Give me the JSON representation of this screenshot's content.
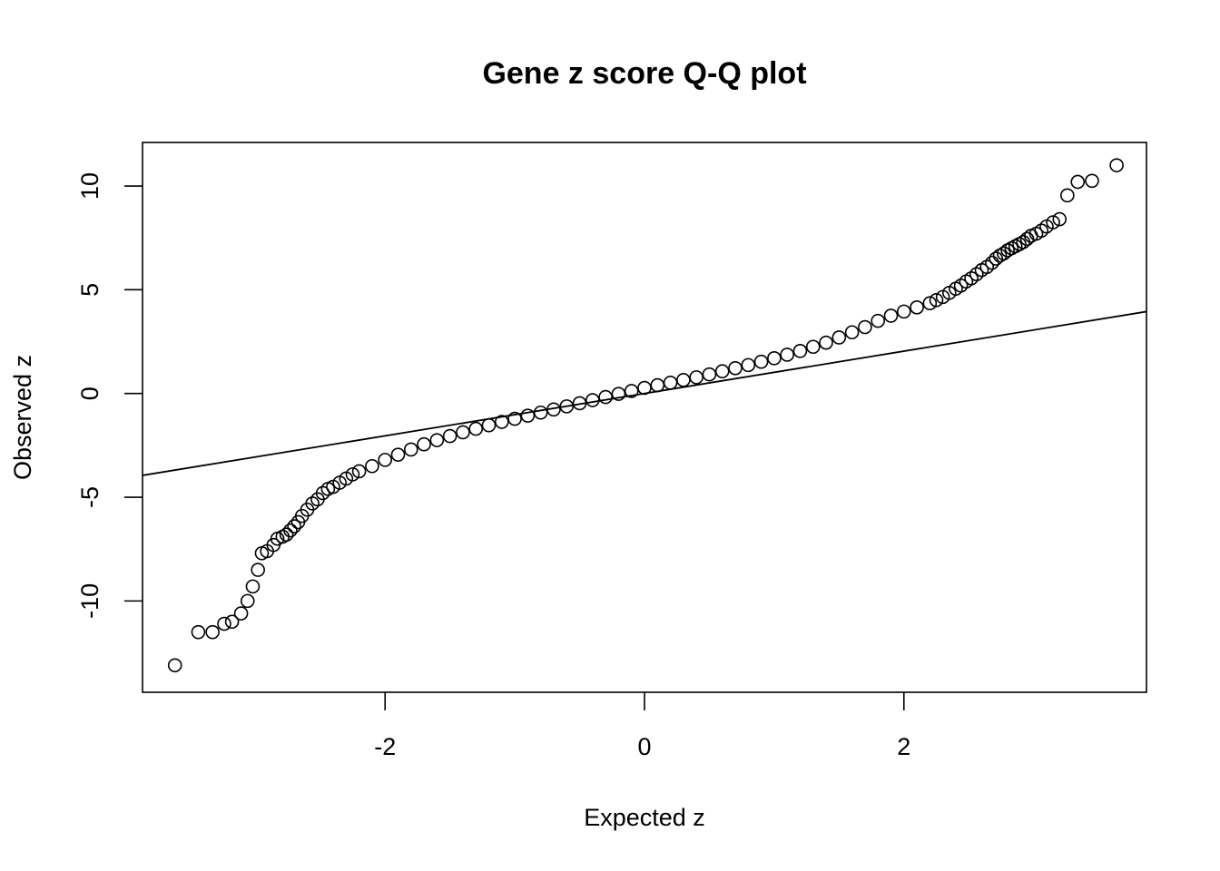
{
  "chart_data": {
    "type": "scatter",
    "title": "Gene z score Q-Q plot",
    "xlabel": "Expected z",
    "ylabel": "Observed z",
    "xlim": [
      -3.87,
      3.87
    ],
    "ylim": [
      -14.4,
      12.1
    ],
    "x_ticks": [
      -2,
      0,
      2
    ],
    "x_tick_labels": [
      "-2",
      "0",
      "2"
    ],
    "y_ticks": [
      -10,
      -5,
      0,
      5,
      10
    ],
    "y_tick_labels": [
      "-10",
      "-5",
      "0",
      "5",
      "10"
    ],
    "grid": false,
    "legend": "none",
    "reference_line": {
      "intercept": 0,
      "slope": 1.02
    },
    "points": {
      "x": [
        -3.62,
        -3.44,
        -3.33,
        -3.24,
        -3.18,
        -3.11,
        -3.06,
        -3.02,
        -2.98,
        -2.95,
        -2.91,
        -2.86,
        -2.83,
        -2.79,
        -2.76,
        -2.73,
        -2.7,
        -2.67,
        -2.64,
        -2.6,
        -2.56,
        -2.52,
        -2.48,
        -2.44,
        -2.4,
        -2.35,
        -2.3,
        -2.25,
        -2.2,
        -2.1,
        -2.0,
        -1.9,
        -1.8,
        -1.7,
        -1.6,
        -1.5,
        -1.4,
        -1.3,
        -1.2,
        -1.1,
        -1.0,
        -0.9,
        -0.8,
        -0.7,
        -0.6,
        -0.5,
        -0.4,
        -0.3,
        -0.2,
        -0.1,
        0.0,
        0.1,
        0.2,
        0.3,
        0.4,
        0.5,
        0.6,
        0.7,
        0.8,
        0.9,
        1.0,
        1.1,
        1.2,
        1.3,
        1.4,
        1.5,
        1.6,
        1.7,
        1.8,
        1.9,
        2.0,
        2.1,
        2.2,
        2.25,
        2.3,
        2.35,
        2.4,
        2.44,
        2.48,
        2.52,
        2.56,
        2.6,
        2.64,
        2.68,
        2.71,
        2.74,
        2.77,
        2.8,
        2.83,
        2.86,
        2.89,
        2.92,
        2.95,
        2.98,
        3.02,
        3.06,
        3.1,
        3.15,
        3.2,
        3.26,
        3.34,
        3.45,
        3.64
      ],
      "y": [
        -13.1,
        -11.5,
        -11.5,
        -11.1,
        -11.0,
        -10.6,
        -10.0,
        -9.3,
        -8.5,
        -7.7,
        -7.6,
        -7.3,
        -7.0,
        -6.9,
        -6.8,
        -6.6,
        -6.4,
        -6.2,
        -5.9,
        -5.6,
        -5.3,
        -5.1,
        -4.8,
        -4.6,
        -4.5,
        -4.3,
        -4.1,
        -3.9,
        -3.75,
        -3.5,
        -3.2,
        -2.95,
        -2.7,
        -2.45,
        -2.25,
        -2.05,
        -1.87,
        -1.7,
        -1.53,
        -1.37,
        -1.22,
        -1.07,
        -0.92,
        -0.77,
        -0.62,
        -0.47,
        -0.32,
        -0.17,
        -0.02,
        0.12,
        0.27,
        0.4,
        0.52,
        0.65,
        0.78,
        0.92,
        1.07,
        1.22,
        1.37,
        1.53,
        1.7,
        1.87,
        2.05,
        2.25,
        2.45,
        2.7,
        2.95,
        3.2,
        3.5,
        3.75,
        3.95,
        4.15,
        4.35,
        4.5,
        4.65,
        4.85,
        5.05,
        5.2,
        5.4,
        5.55,
        5.75,
        5.95,
        6.1,
        6.3,
        6.5,
        6.65,
        6.75,
        6.9,
        7.0,
        7.1,
        7.2,
        7.3,
        7.45,
        7.6,
        7.7,
        7.85,
        8.05,
        8.25,
        8.4,
        9.55,
        10.2,
        10.25,
        11.0
      ]
    }
  }
}
